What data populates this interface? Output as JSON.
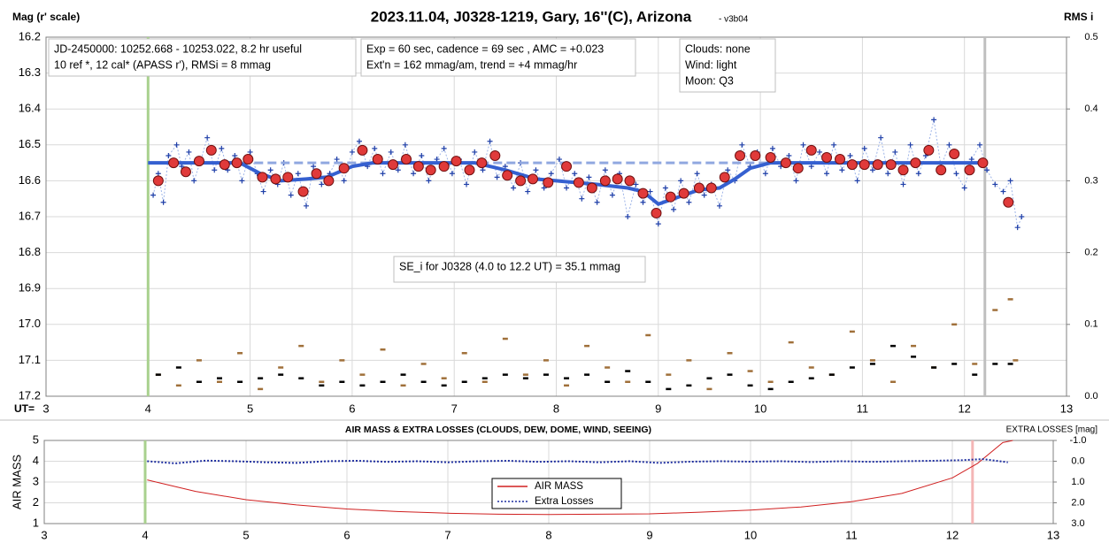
{
  "chart_data": [
    {
      "type": "scatter",
      "title": "2023.11.04, J0328-1219, Gary, 16''(C), Arizona",
      "subtitle": "- v3b04",
      "y_label": "Mag (r' scale)",
      "y2_label": "RMS i",
      "x_label": "UT=",
      "xlim": [
        3,
        13
      ],
      "xticks": [
        3,
        4,
        5,
        6,
        7,
        8,
        9,
        10,
        11,
        12,
        13
      ],
      "ylim": [
        17.2,
        16.2
      ],
      "yticks": [
        16.2,
        16.3,
        16.4,
        16.5,
        16.6,
        16.7,
        16.8,
        16.9,
        {
          "value": 17,
          "label": "17.0"
        },
        17.1,
        17.2
      ],
      "y2lim": [
        0,
        0.5
      ],
      "y2ticks": [
        {
          "value": 0,
          "label": "0.0"
        },
        0.1,
        0.2,
        0.3,
        0.4,
        0.5
      ],
      "grid": true,
      "vlines": [
        {
          "x": 4.0,
          "color": "#a9d18e"
        },
        {
          "x": 12.2,
          "color": "#bfbfbf"
        }
      ],
      "annotations": [
        {
          "lines": [
            "JD-2450000: 10252.668 - 10253.022, 8.2 hr useful",
            "10 ref *, 12 cal*  (APASS r'), RMSi = 8 mmag"
          ]
        },
        {
          "lines": [
            "Exp = 60 sec, cadence = 69 sec , AMC = +0.023",
            "Ext'n = 162 mmag/am, trend = +4 mmag/hr"
          ]
        },
        {
          "lines": [
            "Clouds: none",
            "Wind:  light",
            "Moon:  Q3"
          ]
        },
        {
          "lines": [
            "SE_i for J0328 (4.0 to 12.2 UT) = 35.1 mmag"
          ]
        }
      ],
      "series": [
        {
          "color": "#1f3fa8",
          "marker": "cross",
          "line": "dotted",
          "line_color": "#9db4e8",
          "width": 1,
          "x": [
            4.05,
            4.1,
            4.15,
            4.2,
            4.28,
            4.33,
            4.4,
            4.45,
            4.52,
            4.58,
            4.65,
            4.72,
            4.78,
            4.85,
            4.92,
            5.0,
            5.07,
            5.13,
            5.2,
            5.27,
            5.33,
            5.4,
            5.47,
            5.55,
            5.62,
            5.7,
            5.78,
            5.85,
            5.92,
            6.0,
            6.07,
            6.15,
            6.22,
            6.3,
            6.38,
            6.45,
            6.52,
            6.6,
            6.68,
            6.75,
            6.83,
            6.9,
            6.98,
            7.05,
            7.12,
            7.2,
            7.28,
            7.35,
            7.42,
            7.5,
            7.58,
            7.65,
            7.72,
            7.8,
            7.88,
            7.95,
            8.03,
            8.1,
            8.18,
            8.25,
            8.32,
            8.4,
            8.48,
            8.55,
            8.62,
            8.7,
            8.78,
            8.85,
            8.92,
            9.0,
            9.07,
            9.15,
            9.22,
            9.3,
            9.38,
            9.45,
            9.52,
            9.6,
            9.68,
            9.75,
            9.82,
            9.9,
            9.97,
            10.05,
            10.12,
            10.2,
            10.28,
            10.35,
            10.42,
            10.5,
            10.58,
            10.65,
            10.72,
            10.8,
            10.88,
            10.95,
            11.02,
            11.1,
            11.18,
            11.25,
            11.32,
            11.4,
            11.47,
            11.55,
            11.62,
            11.7,
            11.77,
            11.85,
            11.92,
            12.0,
            12.07,
            12.15,
            12.22,
            12.3,
            12.38,
            12.45,
            12.52,
            12.56
          ],
          "values": [
            16.64,
            16.58,
            16.66,
            16.53,
            16.5,
            16.56,
            16.52,
            16.6,
            16.54,
            16.48,
            16.57,
            16.51,
            16.57,
            16.53,
            16.6,
            16.52,
            16.58,
            16.63,
            16.57,
            16.61,
            16.55,
            16.64,
            16.58,
            16.67,
            16.56,
            16.61,
            16.58,
            16.54,
            16.6,
            16.52,
            16.49,
            16.56,
            16.51,
            16.58,
            16.52,
            16.57,
            16.5,
            16.58,
            16.53,
            16.6,
            16.54,
            16.51,
            16.58,
            16.54,
            16.61,
            16.52,
            16.57,
            16.49,
            16.59,
            16.56,
            16.62,
            16.55,
            16.63,
            16.57,
            16.62,
            16.58,
            16.54,
            16.62,
            16.58,
            16.65,
            16.59,
            16.66,
            16.57,
            16.64,
            16.58,
            16.7,
            16.61,
            16.66,
            16.63,
            16.72,
            16.62,
            16.68,
            16.6,
            16.66,
            16.58,
            16.64,
            16.61,
            16.67,
            16.57,
            16.6,
            16.5,
            16.56,
            16.52,
            16.58,
            16.51,
            16.56,
            16.53,
            16.6,
            16.5,
            16.56,
            16.52,
            16.58,
            16.5,
            16.57,
            16.53,
            16.6,
            16.51,
            16.57,
            16.48,
            16.58,
            16.52,
            16.61,
            16.5,
            16.58,
            16.53,
            16.43,
            16.56,
            16.5,
            16.58,
            16.62,
            16.54,
            16.5,
            16.57,
            16.61,
            16.63,
            16.6,
            16.73,
            16.7
          ]
        },
        {
          "color": "#90a8e0",
          "marker": "none",
          "line": "dashed",
          "width": 3,
          "x": [
            4.0,
            12.2
          ],
          "values": [
            16.55,
            16.55
          ]
        },
        {
          "color": "#3560d0",
          "marker": "none",
          "line": "solid",
          "width": 4,
          "x": [
            4.0,
            4.9,
            5.1,
            5.3,
            5.55,
            5.75,
            6.0,
            6.2,
            7.2,
            7.5,
            7.8,
            8.0,
            8.4,
            8.7,
            8.85,
            9.0,
            9.15,
            9.4,
            9.6,
            9.75,
            9.9,
            10.1,
            12.2
          ],
          "values": [
            16.55,
            16.55,
            16.58,
            16.6,
            16.595,
            16.59,
            16.56,
            16.55,
            16.55,
            16.57,
            16.595,
            16.6,
            16.61,
            16.62,
            16.63,
            16.665,
            16.65,
            16.625,
            16.62,
            16.595,
            16.565,
            16.55,
            16.55
          ]
        },
        {
          "color": "#e03a3a",
          "marker": "circle",
          "line": null,
          "x": [
            4.1,
            4.25,
            4.37,
            4.5,
            4.62,
            4.75,
            4.87,
            4.98,
            5.12,
            5.25,
            5.37,
            5.52,
            5.65,
            5.77,
            5.92,
            6.1,
            6.25,
            6.4,
            6.53,
            6.65,
            6.77,
            6.9,
            7.02,
            7.15,
            7.27,
            7.4,
            7.52,
            7.65,
            7.77,
            7.92,
            8.1,
            8.22,
            8.35,
            8.48,
            8.6,
            8.72,
            8.85,
            8.98,
            9.12,
            9.25,
            9.4,
            9.52,
            9.65,
            9.8,
            9.95,
            10.1,
            10.25,
            10.37,
            10.5,
            10.65,
            10.78,
            10.9,
            11.02,
            11.15,
            11.28,
            11.4,
            11.52,
            11.65,
            11.77,
            11.9,
            12.05,
            12.18,
            12.43
          ],
          "values": [
            16.6,
            16.55,
            16.575,
            16.545,
            16.515,
            16.555,
            16.55,
            16.54,
            16.59,
            16.595,
            16.59,
            16.63,
            16.58,
            16.6,
            16.565,
            16.515,
            16.54,
            16.555,
            16.54,
            16.56,
            16.57,
            16.56,
            16.545,
            16.57,
            16.55,
            16.53,
            16.585,
            16.6,
            16.595,
            16.605,
            16.56,
            16.605,
            16.62,
            16.6,
            16.595,
            16.6,
            16.635,
            16.69,
            16.645,
            16.635,
            16.62,
            16.62,
            16.59,
            16.53,
            16.53,
            16.535,
            16.55,
            16.565,
            16.515,
            16.535,
            16.54,
            16.555,
            16.555,
            16.555,
            16.555,
            16.57,
            16.55,
            16.515,
            16.57,
            16.525,
            16.57,
            16.55,
            16.66
          ]
        },
        {
          "color": "#a0703a",
          "marker": "dash",
          "line": null,
          "axis": "y2",
          "x": [
            4.1,
            4.3,
            4.5,
            4.7,
            4.9,
            5.1,
            5.3,
            5.5,
            5.7,
            5.9,
            6.1,
            6.3,
            6.5,
            6.7,
            6.9,
            7.1,
            7.3,
            7.5,
            7.7,
            7.9,
            8.1,
            8.3,
            8.5,
            8.7,
            8.9,
            9.1,
            9.3,
            9.5,
            9.7,
            9.9,
            10.1,
            10.3,
            10.5,
            10.7,
            10.9,
            11.1,
            11.3,
            11.5,
            11.7,
            11.9,
            12.1,
            12.3,
            12.45,
            12.5
          ],
          "values": [
            0.03,
            0.015,
            0.05,
            0.02,
            0.06,
            0.01,
            0.04,
            0.07,
            0.02,
            0.05,
            0.03,
            0.065,
            0.015,
            0.045,
            0.025,
            0.06,
            0.02,
            0.08,
            0.03,
            0.05,
            0.015,
            0.07,
            0.04,
            0.02,
            0.085,
            0.03,
            0.05,
            0.01,
            0.06,
            0.035,
            0.02,
            0.075,
            0.04,
            0.03,
            0.09,
            0.05,
            0.02,
            0.07,
            0.04,
            0.1,
            0.045,
            0.12,
            0.135,
            0.05
          ]
        },
        {
          "color": "#000000",
          "marker": "dash",
          "line": null,
          "axis": "y2",
          "x": [
            4.1,
            4.3,
            4.5,
            4.7,
            4.9,
            5.1,
            5.3,
            5.5,
            5.7,
            5.9,
            6.1,
            6.3,
            6.5,
            6.7,
            6.9,
            7.1,
            7.3,
            7.5,
            7.7,
            7.9,
            8.1,
            8.3,
            8.5,
            8.7,
            8.9,
            9.1,
            9.3,
            9.5,
            9.7,
            9.9,
            10.1,
            10.3,
            10.5,
            10.7,
            10.9,
            11.1,
            11.3,
            11.5,
            11.7,
            11.9,
            12.1,
            12.3,
            12.45
          ],
          "values": [
            0.03,
            0.04,
            0.02,
            0.025,
            0.02,
            0.025,
            0.03,
            0.025,
            0.015,
            0.02,
            0.015,
            0.02,
            0.03,
            0.02,
            0.015,
            0.02,
            0.025,
            0.03,
            0.025,
            0.03,
            0.025,
            0.03,
            0.02,
            0.035,
            0.02,
            0.01,
            0.015,
            0.025,
            0.03,
            0.015,
            0.01,
            0.02,
            0.025,
            0.03,
            0.04,
            0.045,
            0.07,
            0.055,
            0.04,
            0.045,
            0.03,
            0.045,
            0.045
          ]
        }
      ]
    },
    {
      "type": "line",
      "title": "AIR MASS & EXTRA LOSSES (CLOUDS, DEW, DOME, WIND, SEEING)",
      "y_label": "AIR MASS",
      "y2_label": "EXTRA LOSSES [mag]",
      "xlim": [
        3,
        13
      ],
      "xticks": [
        3,
        4,
        5,
        6,
        7,
        8,
        9,
        10,
        11,
        12,
        13
      ],
      "ylim": [
        1,
        5
      ],
      "yticks": [
        1,
        2,
        3,
        4,
        5
      ],
      "y2lim": [
        3,
        -1
      ],
      "y2ticks": [
        {
          "value": -1,
          "label": "-1.0"
        },
        {
          "value": 0,
          "label": "0.0"
        },
        {
          "value": 1,
          "label": "1.0"
        },
        {
          "value": 2,
          "label": "2.0"
        },
        {
          "value": 3,
          "label": "3.0"
        }
      ],
      "grid": true,
      "legend": "lower center",
      "vlines": [
        {
          "x": 4.0,
          "color": "#a9d18e"
        },
        {
          "x": 12.2,
          "color": "#f4b6b6"
        }
      ],
      "series": [
        {
          "name": "AIR MASS",
          "color": "#d02020",
          "marker": "none",
          "line": "solid",
          "width": 1,
          "x": [
            4.02,
            4.5,
            5,
            5.5,
            6,
            6.5,
            7,
            7.5,
            8,
            8.5,
            9,
            9.5,
            10,
            10.5,
            11,
            11.5,
            12,
            12.25,
            12.5,
            12.6
          ],
          "values": [
            3.1,
            2.55,
            2.15,
            1.9,
            1.7,
            1.58,
            1.5,
            1.45,
            1.44,
            1.45,
            1.47,
            1.55,
            1.65,
            1.8,
            2.05,
            2.45,
            3.2,
            3.9,
            4.9,
            5.0
          ]
        },
        {
          "name": "Extra Losses",
          "color": "#1f2fa0",
          "marker": "none",
          "line": "dotted",
          "width": 2,
          "axis": "y2",
          "x": [
            4.02,
            4.3,
            4.6,
            4.9,
            5.2,
            5.5,
            5.8,
            6.1,
            6.4,
            6.7,
            7.0,
            7.3,
            7.6,
            7.9,
            8.2,
            8.5,
            8.8,
            9.1,
            9.4,
            9.7,
            10.0,
            10.3,
            10.6,
            10.9,
            11.2,
            11.5,
            11.8,
            12.1,
            12.3,
            12.55
          ],
          "values": [
            0.0,
            0.1,
            -0.03,
            0.0,
            0.05,
            0.08,
            0.0,
            -0.02,
            0.03,
            0.0,
            0.05,
            0.0,
            -0.02,
            0.03,
            0.0,
            0.05,
            0.0,
            0.08,
            0.02,
            0.0,
            0.02,
            0.0,
            0.04,
            0.0,
            0.03,
            0.0,
            -0.02,
            -0.05,
            -0.1,
            0.05
          ]
        }
      ]
    }
  ]
}
